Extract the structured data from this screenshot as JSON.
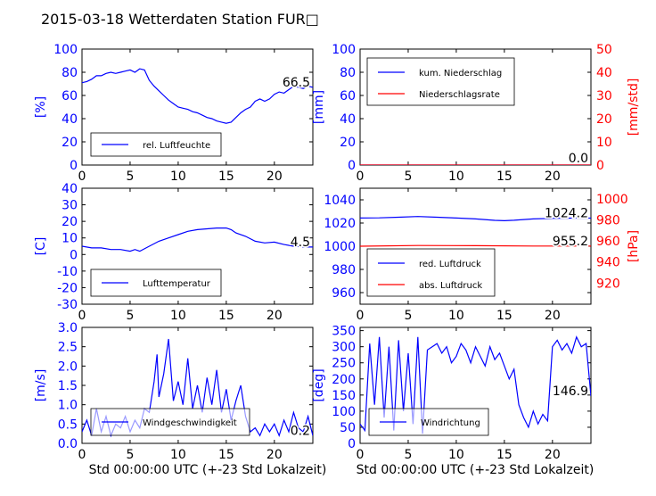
{
  "figure": {
    "title": "2015-03-18 Wetterdaten Station FUR□",
    "x_axis_label": "Std 00:00:00 UTC (+-23 Std Lokalzeit)"
  },
  "colors": {
    "left_axis": "#0000ff",
    "right_axis": "#ff0000",
    "series_blue": "#0000ff",
    "series_red": "#ff0000",
    "frame": "#000000"
  },
  "chart_data": [
    {
      "id": "humidity",
      "type": "line",
      "ylabel": "[%]",
      "xlim": [
        0,
        24
      ],
      "ylim": [
        0,
        100
      ],
      "xticks": [
        0,
        5,
        10,
        15,
        20
      ],
      "yticks": [
        0,
        20,
        40,
        60,
        80,
        100
      ],
      "legend": "bottom-left",
      "current_value_label": "66.5",
      "series": [
        {
          "name": "rel. Luftfeuchte",
          "color": "#0000ff",
          "x": [
            0,
            0.5,
            1,
            1.5,
            2,
            2.5,
            3,
            3.5,
            4,
            4.5,
            5,
            5.5,
            6,
            6.5,
            7,
            7.5,
            8,
            8.5,
            9,
            9.5,
            10,
            10.5,
            11,
            11.5,
            12,
            12.5,
            13,
            13.5,
            14,
            14.5,
            15,
            15.5,
            16,
            16.5,
            17,
            17.5,
            18,
            18.5,
            19,
            19.5,
            20,
            20.5,
            21,
            21.5,
            22,
            22.5,
            23,
            23.5,
            24
          ],
          "y": [
            71,
            72,
            74,
            77,
            77,
            79,
            80,
            79,
            80,
            81,
            82,
            80,
            83,
            82,
            73,
            68,
            64,
            60,
            56,
            53,
            50,
            49,
            48,
            46,
            45,
            43,
            41,
            40,
            38,
            37,
            36,
            37,
            41,
            45,
            48,
            50,
            55,
            57,
            55,
            57,
            61,
            63,
            62,
            65,
            68,
            67,
            66,
            68,
            67
          ]
        }
      ]
    },
    {
      "id": "precipitation",
      "type": "line",
      "ylabel": "[mm]",
      "ylabel_right": "[mm/std]",
      "xlim": [
        0,
        24
      ],
      "ylim": [
        0,
        100
      ],
      "ylim_right": [
        0,
        50
      ],
      "xticks": [
        0,
        5,
        10,
        15,
        20
      ],
      "yticks": [
        0,
        20,
        40,
        60,
        80,
        100
      ],
      "yticks_right": [
        0,
        10,
        20,
        30,
        40,
        50
      ],
      "legend": "top-left",
      "current_value_label": "0.0",
      "current_value_label_right": "0.0",
      "series": [
        {
          "name": "kum. Niederschlag",
          "color": "#0000ff",
          "axis": "left",
          "x": [
            0,
            24
          ],
          "y": [
            0,
            0
          ]
        },
        {
          "name": "Niederschlagsrate",
          "color": "#ff0000",
          "axis": "right",
          "x": [
            0,
            24
          ],
          "y": [
            0,
            0
          ]
        }
      ]
    },
    {
      "id": "temperature",
      "type": "line",
      "ylabel": "[C]",
      "xlim": [
        0,
        24
      ],
      "ylim": [
        -30,
        40
      ],
      "xticks": [
        0,
        5,
        10,
        15,
        20
      ],
      "yticks": [
        -30,
        -20,
        -10,
        0,
        10,
        20,
        30,
        40
      ],
      "legend": "bottom-left",
      "current_value_label": "4.5",
      "series": [
        {
          "name": "Lufttemperatur",
          "color": "#0000ff",
          "x": [
            0,
            1,
            2,
            3,
            4,
            5,
            5.5,
            6,
            7,
            8,
            9,
            10,
            11,
            12,
            13,
            14,
            15,
            15.5,
            16,
            17,
            18,
            19,
            20,
            21,
            22,
            23,
            24
          ],
          "y": [
            5,
            4,
            4,
            3,
            3,
            2,
            3,
            2,
            5,
            8,
            10,
            12,
            14,
            15,
            15.5,
            16,
            16,
            15,
            13,
            11,
            8,
            7,
            7.5,
            6,
            5,
            4.5,
            4.5
          ]
        }
      ]
    },
    {
      "id": "pressure",
      "type": "line",
      "ylabel_right": "[hPa]",
      "xlim": [
        0,
        24
      ],
      "ylim": [
        950,
        1050
      ],
      "ylim_right": [
        900,
        1010
      ],
      "xticks": [
        0,
        5,
        10,
        15,
        20
      ],
      "yticks": [
        960,
        980,
        1000,
        1020,
        1040
      ],
      "yticks_right": [
        920,
        940,
        960,
        980,
        1000
      ],
      "legend": "bottom-left",
      "current_value_label": "1024.2",
      "current_value_label_right": "955.2",
      "series": [
        {
          "name": "red. Luftdruck",
          "color": "#0000ff",
          "axis": "left",
          "x": [
            0,
            2,
            4,
            6,
            8,
            10,
            12,
            14,
            15,
            16,
            18,
            20,
            22,
            24
          ],
          "y": [
            1024.3,
            1024.5,
            1025,
            1025.6,
            1025,
            1024.3,
            1023.5,
            1022.3,
            1022,
            1022.4,
            1023.5,
            1024,
            1024.2,
            1024.2
          ]
        },
        {
          "name": "abs. Luftdruck",
          "color": "#ff0000",
          "axis": "right",
          "x": [
            0,
            6,
            12,
            18,
            24
          ],
          "y": [
            955,
            955.7,
            955.5,
            955.2,
            955.2
          ]
        }
      ]
    },
    {
      "id": "windspeed",
      "type": "line",
      "ylabel": "[m/s]",
      "xlim": [
        0,
        24
      ],
      "ylim": [
        0,
        3.0
      ],
      "xticks": [
        0,
        5,
        10,
        15,
        20
      ],
      "yticks": [
        0.0,
        0.5,
        1.0,
        1.5,
        2.0,
        2.5,
        3.0
      ],
      "legend": "bottom-left",
      "current_value_label": "0.2",
      "series": [
        {
          "name": "Windgeschwindigkeit",
          "color": "#0000ff",
          "x": [
            0,
            0.5,
            1,
            1.5,
            2,
            2.5,
            3,
            3.5,
            4,
            4.5,
            5,
            5.5,
            6,
            6.5,
            7,
            7.5,
            7.8,
            8,
            8.5,
            9,
            9.5,
            10,
            10.5,
            11,
            11.5,
            12,
            12.5,
            13,
            13.5,
            14,
            14.5,
            15,
            15.5,
            16,
            16.5,
            17,
            17.5,
            18,
            18.5,
            19,
            19.5,
            20,
            20.5,
            21,
            21.5,
            22,
            22.5,
            23,
            23.5,
            24
          ],
          "y": [
            0.3,
            0.6,
            0.2,
            0.9,
            0.3,
            0.7,
            0.2,
            0.5,
            0.4,
            0.7,
            0.3,
            0.6,
            0.4,
            0.9,
            0.8,
            1.6,
            2.3,
            1.2,
            1.8,
            2.7,
            1.1,
            1.6,
            1.0,
            2.2,
            0.9,
            1.5,
            0.8,
            1.7,
            1.0,
            1.9,
            0.8,
            1.4,
            0.6,
            1.1,
            1.5,
            0.7,
            0.3,
            0.4,
            0.2,
            0.5,
            0.3,
            0.5,
            0.2,
            0.6,
            0.3,
            0.8,
            0.4,
            0.3,
            0.7,
            0.2
          ]
        }
      ]
    },
    {
      "id": "winddirection",
      "type": "line",
      "ylabel": "[deg]",
      "xlim": [
        0,
        24
      ],
      "ylim": [
        0,
        360
      ],
      "xticks": [
        0,
        5,
        10,
        15,
        20
      ],
      "yticks": [
        0,
        50,
        100,
        150,
        200,
        250,
        300,
        350
      ],
      "legend": "bottom-left",
      "current_value_label": "146.9",
      "series": [
        {
          "name": "Windrichtung",
          "color": "#0000ff",
          "x": [
            0,
            0.5,
            1,
            1.5,
            2,
            2.5,
            3,
            3.5,
            4,
            4.5,
            5,
            5.5,
            6,
            6.5,
            7,
            7.5,
            8,
            8.5,
            9,
            9.5,
            10,
            10.5,
            11,
            11.5,
            12,
            12.5,
            13,
            13.5,
            14,
            14.5,
            15,
            15.5,
            16,
            16.5,
            17,
            17.5,
            18,
            18.5,
            19,
            19.5,
            20,
            20.5,
            21,
            21.5,
            22,
            22.5,
            23,
            23.5,
            24
          ],
          "y": [
            60,
            40,
            310,
            120,
            330,
            80,
            300,
            40,
            320,
            100,
            280,
            60,
            330,
            30,
            290,
            300,
            310,
            280,
            300,
            250,
            270,
            310,
            290,
            250,
            300,
            270,
            240,
            300,
            260,
            280,
            240,
            200,
            230,
            120,
            80,
            50,
            100,
            60,
            90,
            70,
            300,
            320,
            290,
            310,
            280,
            330,
            300,
            310,
            147
          ]
        }
      ]
    }
  ]
}
